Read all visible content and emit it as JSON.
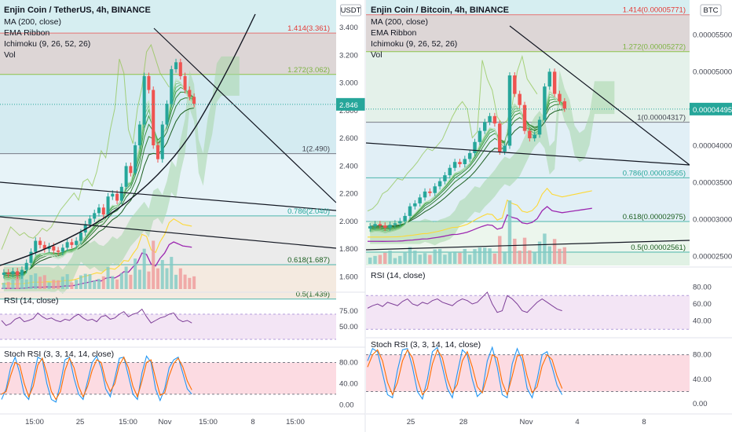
{
  "chart_data": [
    {
      "type": "candlestick",
      "title": "Enjin Coin / TetherUS, 4h, BINANCE",
      "indicators": [
        "MA (200, close)",
        "EMA Ribbon",
        "Ichimoku (9, 26, 52, 26)",
        "Vol"
      ],
      "currency": "USDT",
      "ylim": [
        1.5,
        3.6
      ],
      "y_ticks": [
        "3.400",
        "3.200",
        "3.000",
        "2.800",
        "2.600",
        "2.400",
        "2.200",
        "2.000",
        "1.800",
        "1.600"
      ],
      "y_tick_values": [
        3.4,
        3.2,
        3.0,
        2.8,
        2.6,
        2.4,
        2.2,
        2.0,
        1.8,
        1.6
      ],
      "last_price": "2.846",
      "last_price_value": 2.846,
      "x_labels": [
        "15:00",
        "25",
        "15:00",
        "Nov",
        "15:00",
        "8",
        "15:00"
      ],
      "fib_levels": [
        {
          "label": "1.414(3.361)",
          "value": 3.361
        },
        {
          "label": "1.272(3.062)",
          "value": 3.062
        },
        {
          "label": "1(2.490)",
          "value": 2.49
        },
        {
          "label": "0.786(2.040)",
          "value": 2.04
        },
        {
          "label": "0.618(1.687)",
          "value": 1.687
        },
        {
          "label": "0.5(1.439)",
          "value": 1.439
        }
      ],
      "close_path": [
        1.63,
        1.62,
        1.64,
        1.61,
        1.65,
        1.7,
        1.78,
        1.86,
        1.83,
        1.8,
        1.82,
        1.79,
        1.78,
        1.81,
        1.85,
        1.83,
        1.86,
        1.92,
        1.98,
        2.02,
        2.06,
        2.1,
        2.05,
        2.18,
        2.2,
        2.15,
        2.25,
        2.4,
        2.35,
        2.55,
        2.7,
        3.05,
        2.95,
        2.55,
        2.45,
        2.7,
        2.85,
        3.1,
        3.15,
        3.05,
        2.95,
        2.9,
        2.85
      ],
      "rsi": {
        "label": "RSI (14, close)",
        "ticks": [
          "75.00",
          "50.00"
        ],
        "tick_values": [
          75,
          50
        ],
        "values": [
          60,
          52,
          55,
          62,
          65,
          58,
          60,
          63,
          72,
          66,
          62,
          64,
          60,
          58,
          62,
          60,
          66,
          70,
          64,
          60,
          62,
          58,
          66,
          68,
          62,
          64,
          70,
          74,
          66,
          70,
          72,
          78,
          66,
          56,
          60,
          64,
          66,
          70,
          72,
          62,
          58,
          60,
          56
        ]
      },
      "stoch_rsi": {
        "label": "Stoch RSI (3, 3, 14, 14, close)",
        "ticks": [
          "80.00",
          "40.00",
          "0.00"
        ],
        "tick_values": [
          80,
          40,
          0
        ],
        "k": [
          10,
          30,
          70,
          90,
          60,
          20,
          10,
          50,
          90,
          85,
          40,
          10,
          5,
          40,
          85,
          90,
          50,
          20,
          10,
          45,
          80,
          92,
          70,
          30,
          15,
          50,
          88,
          90,
          55,
          20,
          10,
          60,
          92,
          80,
          30,
          8,
          30,
          70,
          85,
          90,
          60,
          30,
          20
        ],
        "d": [
          20,
          25,
          55,
          80,
          75,
          40,
          15,
          35,
          75,
          88,
          60,
          25,
          10,
          25,
          65,
          88,
          70,
          35,
          15,
          35,
          65,
          85,
          80,
          45,
          25,
          40,
          75,
          90,
          70,
          35,
          15,
          45,
          80,
          85,
          50,
          18,
          22,
          55,
          78,
          88,
          72,
          45,
          28
        ]
      }
    },
    {
      "type": "candlestick",
      "title": "Enjin Coin / Bitcoin, 4h, BINANCE",
      "indicators": [
        "MA (200, close)",
        "EMA Ribbon",
        "Ichimoku (9, 26, 52, 26)",
        "Vol"
      ],
      "currency": "BTC",
      "ylim": [
        2.38e-05,
        5.97e-05
      ],
      "y_ticks": [
        "0.00005500",
        "0.00005000",
        "0.00004500",
        "0.00004000",
        "0.00003500",
        "0.00003000",
        "0.00002500"
      ],
      "y_tick_values": [
        5.5e-05,
        5e-05,
        4.5e-05,
        4e-05,
        3.5e-05,
        3e-05,
        2.5e-05
      ],
      "last_price": "0.00004495",
      "last_price_value": 4.495e-05,
      "x_labels": [
        "25",
        "28",
        "Nov",
        "4",
        "8"
      ],
      "fib_levels": [
        {
          "label": "1.414(0.00005771)",
          "value": 5.771e-05
        },
        {
          "label": "1.272(0.00005272)",
          "value": 5.272e-05
        },
        {
          "label": "1(0.00004317)",
          "value": 4.317e-05
        },
        {
          "label": "0.786(0.00003565)",
          "value": 3.565e-05
        },
        {
          "label": "0.618(0.00002975)",
          "value": 2.975e-05
        },
        {
          "label": "0.5(0.00002561)",
          "value": 2.561e-05
        }
      ],
      "close_path": [
        2.91e-05,
        2.94e-05,
        2.92e-05,
        2.89e-05,
        2.93e-05,
        2.95e-05,
        2.98e-05,
        3.05e-05,
        3.18e-05,
        3.22e-05,
        3.3e-05,
        3.38e-05,
        3.36e-05,
        3.45e-05,
        3.52e-05,
        3.6e-05,
        3.7e-05,
        3.78e-05,
        3.75e-05,
        3.82e-05,
        3.9e-05,
        4.05e-05,
        4.2e-05,
        4.32e-05,
        4.4e-05,
        4.3e-05,
        3.92e-05,
        4e-05,
        4.95e-05,
        4.7e-05,
        4.55e-05,
        4.2e-05,
        4.1e-05,
        4.15e-05,
        4.35e-05,
        4.8e-05,
        5e-05,
        4.7e-05,
        4.6e-05,
        4.5e-05
      ],
      "rsi": {
        "label": "RSI (14, close)",
        "ticks": [
          "80.00",
          "60.00",
          "40.00"
        ],
        "tick_values": [
          80,
          60,
          40
        ],
        "values": [
          55,
          58,
          60,
          57,
          62,
          60,
          58,
          63,
          66,
          60,
          58,
          62,
          60,
          64,
          66,
          62,
          60,
          58,
          63,
          66,
          64,
          60,
          62,
          68,
          74,
          60,
          50,
          52,
          70,
          66,
          60,
          52,
          50,
          56,
          62,
          66,
          62,
          58,
          54,
          52
        ]
      },
      "stoch_rsi": {
        "label": "Stoch RSI (3, 3, 14, 14, close)",
        "ticks": [
          "80.00",
          "40.00",
          "0.00"
        ],
        "tick_values": [
          80,
          40,
          0
        ],
        "k": [
          70,
          90,
          85,
          50,
          15,
          10,
          55,
          88,
          90,
          60,
          20,
          8,
          40,
          85,
          92,
          60,
          25,
          10,
          50,
          88,
          80,
          40,
          12,
          20,
          70,
          92,
          60,
          15,
          10,
          65,
          90,
          70,
          25,
          10,
          40,
          80,
          85,
          60,
          30,
          15
        ],
        "d": [
          60,
          80,
          88,
          70,
          35,
          15,
          35,
          70,
          88,
          75,
          40,
          15,
          25,
          65,
          88,
          75,
          40,
          18,
          32,
          70,
          85,
          60,
          28,
          18,
          45,
          80,
          75,
          35,
          15,
          45,
          78,
          80,
          45,
          18,
          28,
          62,
          80,
          72,
          45,
          25
        ]
      }
    }
  ]
}
